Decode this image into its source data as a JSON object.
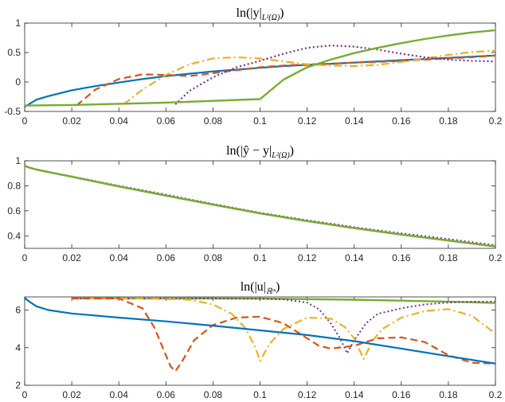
{
  "chart_data": [
    {
      "type": "line",
      "title": "ln(|y|L²(Ω))",
      "title_parts": {
        "main": "ln(|y|",
        "sub": "L²(Ω)",
        "close": ")"
      },
      "xlim": [
        0,
        0.2
      ],
      "ylim": [
        -0.5,
        1
      ],
      "xticks": [
        "0",
        "0.02",
        "0.04",
        "0.06",
        "0.08",
        "0.1",
        "0.12",
        "0.14",
        "0.16",
        "0.18",
        "0.2"
      ],
      "yticks": [
        "-0.5",
        "0",
        "0.5",
        "1"
      ],
      "ytick_values": [
        -0.5,
        0,
        0.5,
        1
      ],
      "series": [
        {
          "name": "blue",
          "color": "#0072BD",
          "dash": "",
          "width": 2.2,
          "x": [
            0,
            0.005,
            0.01,
            0.02,
            0.03,
            0.04,
            0.05,
            0.06,
            0.07,
            0.08,
            0.09,
            0.1,
            0.11,
            0.12,
            0.13,
            0.14,
            0.15,
            0.16,
            0.17,
            0.18,
            0.19,
            0.2
          ],
          "y": [
            -0.42,
            -0.3,
            -0.24,
            -0.14,
            -0.07,
            -0.01,
            0.05,
            0.1,
            0.14,
            0.18,
            0.21,
            0.24,
            0.27,
            0.29,
            0.31,
            0.33,
            0.35,
            0.37,
            0.39,
            0.41,
            0.43,
            0.45
          ]
        },
        {
          "name": "red-dashed",
          "color": "#D95319",
          "dash": "9,5",
          "width": 2.2,
          "x": [
            0.022,
            0.03,
            0.04,
            0.05,
            0.06,
            0.07,
            0.08,
            0.09,
            0.1,
            0.11,
            0.12,
            0.13,
            0.14,
            0.15,
            0.16,
            0.17,
            0.18,
            0.19,
            0.2
          ],
          "y": [
            -0.4,
            -0.13,
            0.05,
            0.13,
            0.12,
            0.1,
            0.15,
            0.2,
            0.25,
            0.28,
            0.3,
            0.31,
            0.33,
            0.34,
            0.36,
            0.38,
            0.4,
            0.42,
            0.45
          ]
        },
        {
          "name": "yellow-dashdot",
          "color": "#EDB120",
          "dash": "10,4,2,4",
          "width": 2.2,
          "x": [
            0.042,
            0.05,
            0.06,
            0.07,
            0.08,
            0.09,
            0.1,
            0.11,
            0.12,
            0.13,
            0.14,
            0.15,
            0.16,
            0.17,
            0.18,
            0.19,
            0.2
          ],
          "y": [
            -0.38,
            -0.13,
            0.12,
            0.3,
            0.4,
            0.42,
            0.4,
            0.35,
            0.3,
            0.28,
            0.27,
            0.29,
            0.34,
            0.4,
            0.46,
            0.51,
            0.53
          ]
        },
        {
          "name": "purple-dotted",
          "color": "#7E2F8E",
          "dash": "2,3",
          "width": 2.2,
          "x": [
            0.064,
            0.07,
            0.08,
            0.09,
            0.1,
            0.11,
            0.12,
            0.13,
            0.14,
            0.15,
            0.16,
            0.17,
            0.18,
            0.19,
            0.2
          ],
          "y": [
            -0.38,
            -0.15,
            0.08,
            0.25,
            0.36,
            0.48,
            0.58,
            0.62,
            0.6,
            0.55,
            0.48,
            0.42,
            0.38,
            0.36,
            0.35
          ]
        },
        {
          "name": "green",
          "color": "#77AC30",
          "dash": "",
          "width": 2.4,
          "x": [
            0,
            0.02,
            0.04,
            0.06,
            0.08,
            0.1,
            0.11,
            0.12,
            0.13,
            0.14,
            0.15,
            0.16,
            0.17,
            0.18,
            0.19,
            0.2
          ],
          "y": [
            -0.4,
            -0.39,
            -0.37,
            -0.35,
            -0.32,
            -0.29,
            0.04,
            0.25,
            0.38,
            0.49,
            0.58,
            0.66,
            0.73,
            0.79,
            0.84,
            0.88
          ]
        }
      ]
    },
    {
      "type": "line",
      "title": "ln(|ŷ − y|L²(Ω))",
      "title_parts": {
        "main": "ln(|ŷ − y|",
        "sub": "L²(Ω)",
        "close": ")"
      },
      "xlim": [
        0,
        0.2
      ],
      "ylim": [
        0.3,
        1
      ],
      "xticks": [
        "0",
        "0.02",
        "0.04",
        "0.06",
        "0.08",
        "0.1",
        "0.12",
        "0.14",
        "0.16",
        "0.18",
        "0.2"
      ],
      "yticks": [
        "0.4",
        "0.6",
        "0.8",
        "1"
      ],
      "ytick_values": [
        0.4,
        0.6,
        0.8,
        1
      ],
      "series": [
        {
          "name": "purple-dotted",
          "color": "#7E2F8E",
          "dash": "2,3",
          "width": 2.0,
          "x": [
            0,
            0.002,
            0.005,
            0.01,
            0.02,
            0.04,
            0.06,
            0.08,
            0.1,
            0.12,
            0.14,
            0.16,
            0.18,
            0.2
          ],
          "y": [
            0.96,
            0.945,
            0.93,
            0.91,
            0.875,
            0.8,
            0.73,
            0.655,
            0.585,
            0.525,
            0.47,
            0.42,
            0.375,
            0.325
          ]
        },
        {
          "name": "blue",
          "color": "#0072BD",
          "dash": "",
          "width": 2.2,
          "x": [
            0,
            0.002,
            0.005,
            0.01,
            0.02,
            0.04,
            0.06,
            0.08,
            0.1,
            0.12,
            0.14,
            0.16,
            0.18,
            0.2
          ],
          "y": [
            0.96,
            0.945,
            0.93,
            0.91,
            0.873,
            0.795,
            0.722,
            0.65,
            0.58,
            0.518,
            0.462,
            0.41,
            0.363,
            0.315
          ]
        },
        {
          "name": "yellow-dashdot",
          "color": "#EDB120",
          "dash": "10,4,2,4",
          "width": 2.2,
          "x": [
            0,
            0.002,
            0.005,
            0.01,
            0.02,
            0.04,
            0.06,
            0.08,
            0.1,
            0.12,
            0.14,
            0.16,
            0.18,
            0.2
          ],
          "y": [
            0.96,
            0.945,
            0.93,
            0.91,
            0.873,
            0.795,
            0.722,
            0.65,
            0.58,
            0.518,
            0.462,
            0.41,
            0.363,
            0.315
          ]
        },
        {
          "name": "red-dashed",
          "color": "#D95319",
          "dash": "9,5",
          "width": 2.2,
          "x": [
            0,
            0.002,
            0.005,
            0.01,
            0.02,
            0.04,
            0.06,
            0.08,
            0.1,
            0.12,
            0.14,
            0.16,
            0.18,
            0.2
          ],
          "y": [
            0.96,
            0.945,
            0.93,
            0.91,
            0.873,
            0.795,
            0.722,
            0.65,
            0.58,
            0.518,
            0.462,
            0.41,
            0.363,
            0.315
          ]
        },
        {
          "name": "green",
          "color": "#77AC30",
          "dash": "",
          "width": 2.4,
          "x": [
            0,
            0.002,
            0.005,
            0.01,
            0.02,
            0.04,
            0.06,
            0.08,
            0.1,
            0.12,
            0.14,
            0.16,
            0.18,
            0.2
          ],
          "y": [
            0.96,
            0.945,
            0.93,
            0.91,
            0.873,
            0.795,
            0.722,
            0.65,
            0.58,
            0.518,
            0.462,
            0.41,
            0.363,
            0.315
          ]
        }
      ]
    },
    {
      "type": "line",
      "title": "ln(|u|ℝᵐ)",
      "title_parts": {
        "main": "ln(|u|",
        "sub": "ℝᵐ",
        "close": ")"
      },
      "xlim": [
        0,
        0.2
      ],
      "ylim": [
        2,
        6.7
      ],
      "xticks": [
        "0",
        "0.02",
        "0.04",
        "0.06",
        "0.08",
        "0.1",
        "0.12",
        "0.14",
        "0.16",
        "0.18",
        "0.2"
      ],
      "yticks": [
        "2",
        "4",
        "6"
      ],
      "ytick_values": [
        2,
        4,
        6
      ],
      "series": [
        {
          "name": "green",
          "color": "#77AC30",
          "dash": "",
          "width": 2.4,
          "x": [
            0.02,
            0.05,
            0.08,
            0.1,
            0.12,
            0.14,
            0.16,
            0.18,
            0.2
          ],
          "y": [
            6.62,
            6.62,
            6.62,
            6.61,
            6.58,
            6.55,
            6.5,
            6.45,
            6.38
          ]
        },
        {
          "name": "purple-dotted",
          "color": "#7E2F8E",
          "dash": "2,3",
          "width": 2.0,
          "x": [
            0.02,
            0.05,
            0.08,
            0.1,
            0.11,
            0.12,
            0.125,
            0.13,
            0.134,
            0.137,
            0.14,
            0.145,
            0.15,
            0.16,
            0.17,
            0.18,
            0.19,
            0.2
          ],
          "y": [
            6.62,
            6.62,
            6.62,
            6.6,
            6.57,
            6.4,
            6.05,
            5.3,
            4.5,
            3.7,
            4.4,
            5.3,
            5.8,
            6.1,
            6.3,
            6.4,
            6.45,
            6.45
          ]
        },
        {
          "name": "yellow-dashdot",
          "color": "#EDB120",
          "dash": "10,4,2,4",
          "width": 2.2,
          "x": [
            0.02,
            0.05,
            0.07,
            0.08,
            0.088,
            0.094,
            0.098,
            0.1,
            0.104,
            0.11,
            0.12,
            0.13,
            0.136,
            0.14,
            0.144,
            0.148,
            0.152,
            0.16,
            0.17,
            0.18,
            0.19,
            0.2
          ],
          "y": [
            6.62,
            6.62,
            6.55,
            6.3,
            5.8,
            5.0,
            4.0,
            3.3,
            4.2,
            5.0,
            5.6,
            5.55,
            5.1,
            4.5,
            3.4,
            4.4,
            5.0,
            5.6,
            5.95,
            6.05,
            5.7,
            4.75
          ]
        },
        {
          "name": "red-dashed",
          "color": "#D95319",
          "dash": "9,5",
          "width": 2.2,
          "x": [
            0.02,
            0.04,
            0.05,
            0.055,
            0.059,
            0.062,
            0.064,
            0.067,
            0.072,
            0.08,
            0.09,
            0.1,
            0.11,
            0.12,
            0.125,
            0.13,
            0.14,
            0.15,
            0.16,
            0.17,
            0.18,
            0.19,
            0.2
          ],
          "y": [
            6.62,
            6.62,
            6.1,
            5.1,
            3.9,
            3.0,
            2.75,
            3.3,
            4.4,
            5.2,
            5.6,
            5.65,
            5.3,
            4.5,
            4.1,
            3.95,
            4.1,
            4.5,
            4.55,
            4.3,
            3.6,
            3.2,
            3.15
          ]
        },
        {
          "name": "blue",
          "color": "#0072BD",
          "dash": "",
          "width": 2.2,
          "x": [
            0,
            0.002,
            0.005,
            0.01,
            0.02,
            0.04,
            0.06,
            0.08,
            0.1,
            0.12,
            0.14,
            0.16,
            0.18,
            0.2
          ],
          "y": [
            6.65,
            6.45,
            6.2,
            6.0,
            5.82,
            5.6,
            5.4,
            5.17,
            4.92,
            4.67,
            4.35,
            3.95,
            3.55,
            3.15
          ]
        }
      ]
    }
  ]
}
